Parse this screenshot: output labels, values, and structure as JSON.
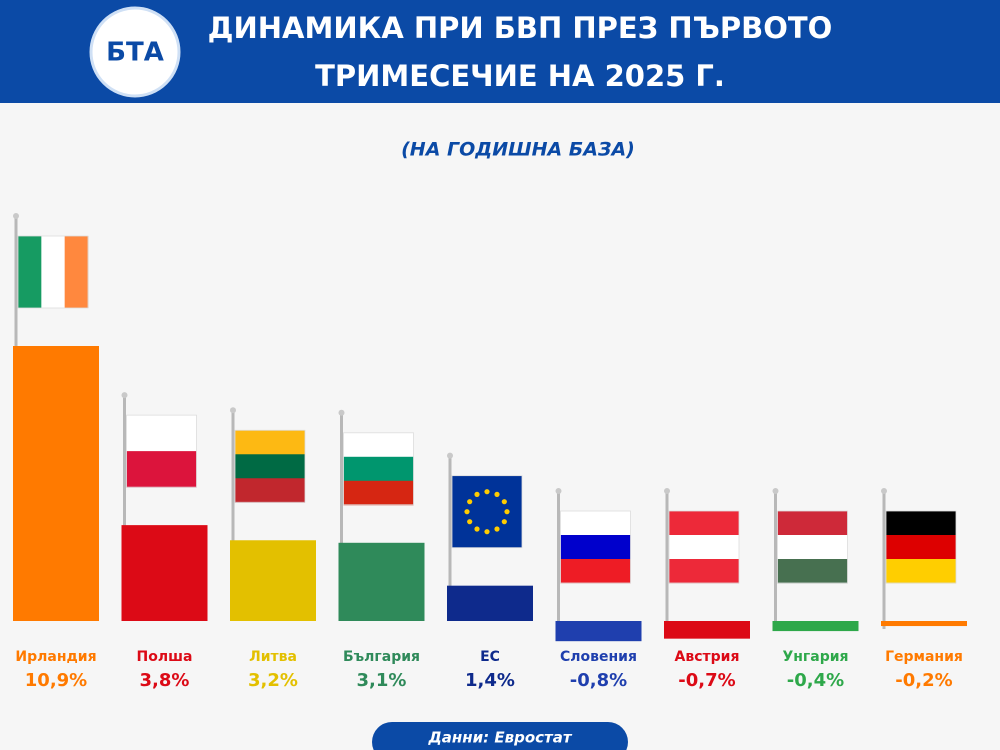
{
  "logo": "БТА",
  "chart_data": {
    "type": "bar",
    "title": [
      "ДИНАМИКА ПРИ БВП ПРЕЗ ПЪРВОТО",
      "ТРИМЕСЕЧИЕ НА 2025 Г."
    ],
    "subtitle": "(НА ГОДИШНА БАЗА)",
    "source": "Данни: Евростат",
    "categories": [
      "Ирландия",
      "Полша",
      "Литва",
      "България",
      "ЕС",
      "Словения",
      "Австрия",
      "Унгария",
      "Германия"
    ],
    "values": [
      10.9,
      3.8,
      3.2,
      3.1,
      1.4,
      -0.8,
      -0.7,
      -0.4,
      -0.2
    ],
    "value_labels": [
      "10,9%",
      "3,8%",
      "3,2%",
      "3,1%",
      "1,4%",
      "-0,8%",
      "-0,7%",
      "-0,4%",
      "-0,2%"
    ],
    "colors": [
      "#ff7a00",
      "#dc0a16",
      "#e3c000",
      "#2f8a5a",
      "#0e2a8c",
      "#1f3fae",
      "#dc0a16",
      "#2ea84a",
      "#ff7a00"
    ]
  }
}
